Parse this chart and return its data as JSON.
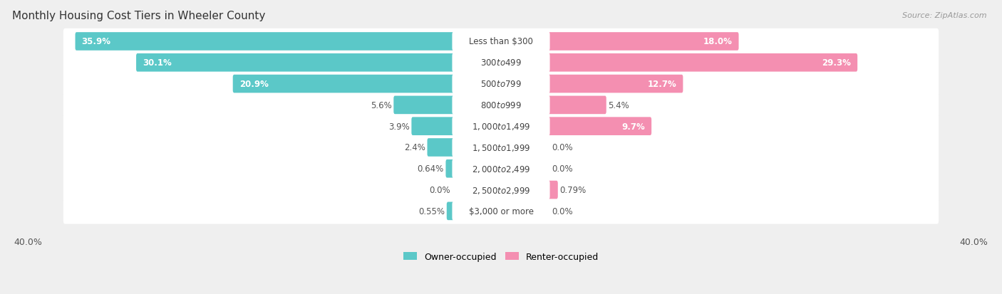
{
  "title": "Monthly Housing Cost Tiers in Wheeler County",
  "source": "Source: ZipAtlas.com",
  "categories": [
    "Less than $300",
    "$300 to $499",
    "$500 to $799",
    "$800 to $999",
    "$1,000 to $1,499",
    "$1,500 to $1,999",
    "$2,000 to $2,499",
    "$2,500 to $2,999",
    "$3,000 or more"
  ],
  "owner_values": [
    35.9,
    30.1,
    20.9,
    5.6,
    3.9,
    2.4,
    0.64,
    0.0,
    0.55
  ],
  "renter_values": [
    18.0,
    29.3,
    12.7,
    5.4,
    9.7,
    0.0,
    0.0,
    0.79,
    0.0
  ],
  "owner_labels": [
    "35.9%",
    "30.1%",
    "20.9%",
    "5.6%",
    "3.9%",
    "2.4%",
    "0.64%",
    "0.0%",
    "0.55%"
  ],
  "renter_labels": [
    "18.0%",
    "29.3%",
    "12.7%",
    "5.4%",
    "9.7%",
    "0.0%",
    "0.0%",
    "0.79%",
    "0.0%"
  ],
  "owner_color": "#5bc8c8",
  "renter_color": "#f48fb1",
  "owner_label": "Owner-occupied",
  "renter_label": "Renter-occupied",
  "axis_max": 40.0,
  "background_color": "#efefef",
  "row_background": "#ffffff",
  "title_fontsize": 11,
  "bar_label_fontsize": 8.5,
  "cat_label_fontsize": 8.5,
  "axis_label_fontsize": 9,
  "source_fontsize": 8
}
